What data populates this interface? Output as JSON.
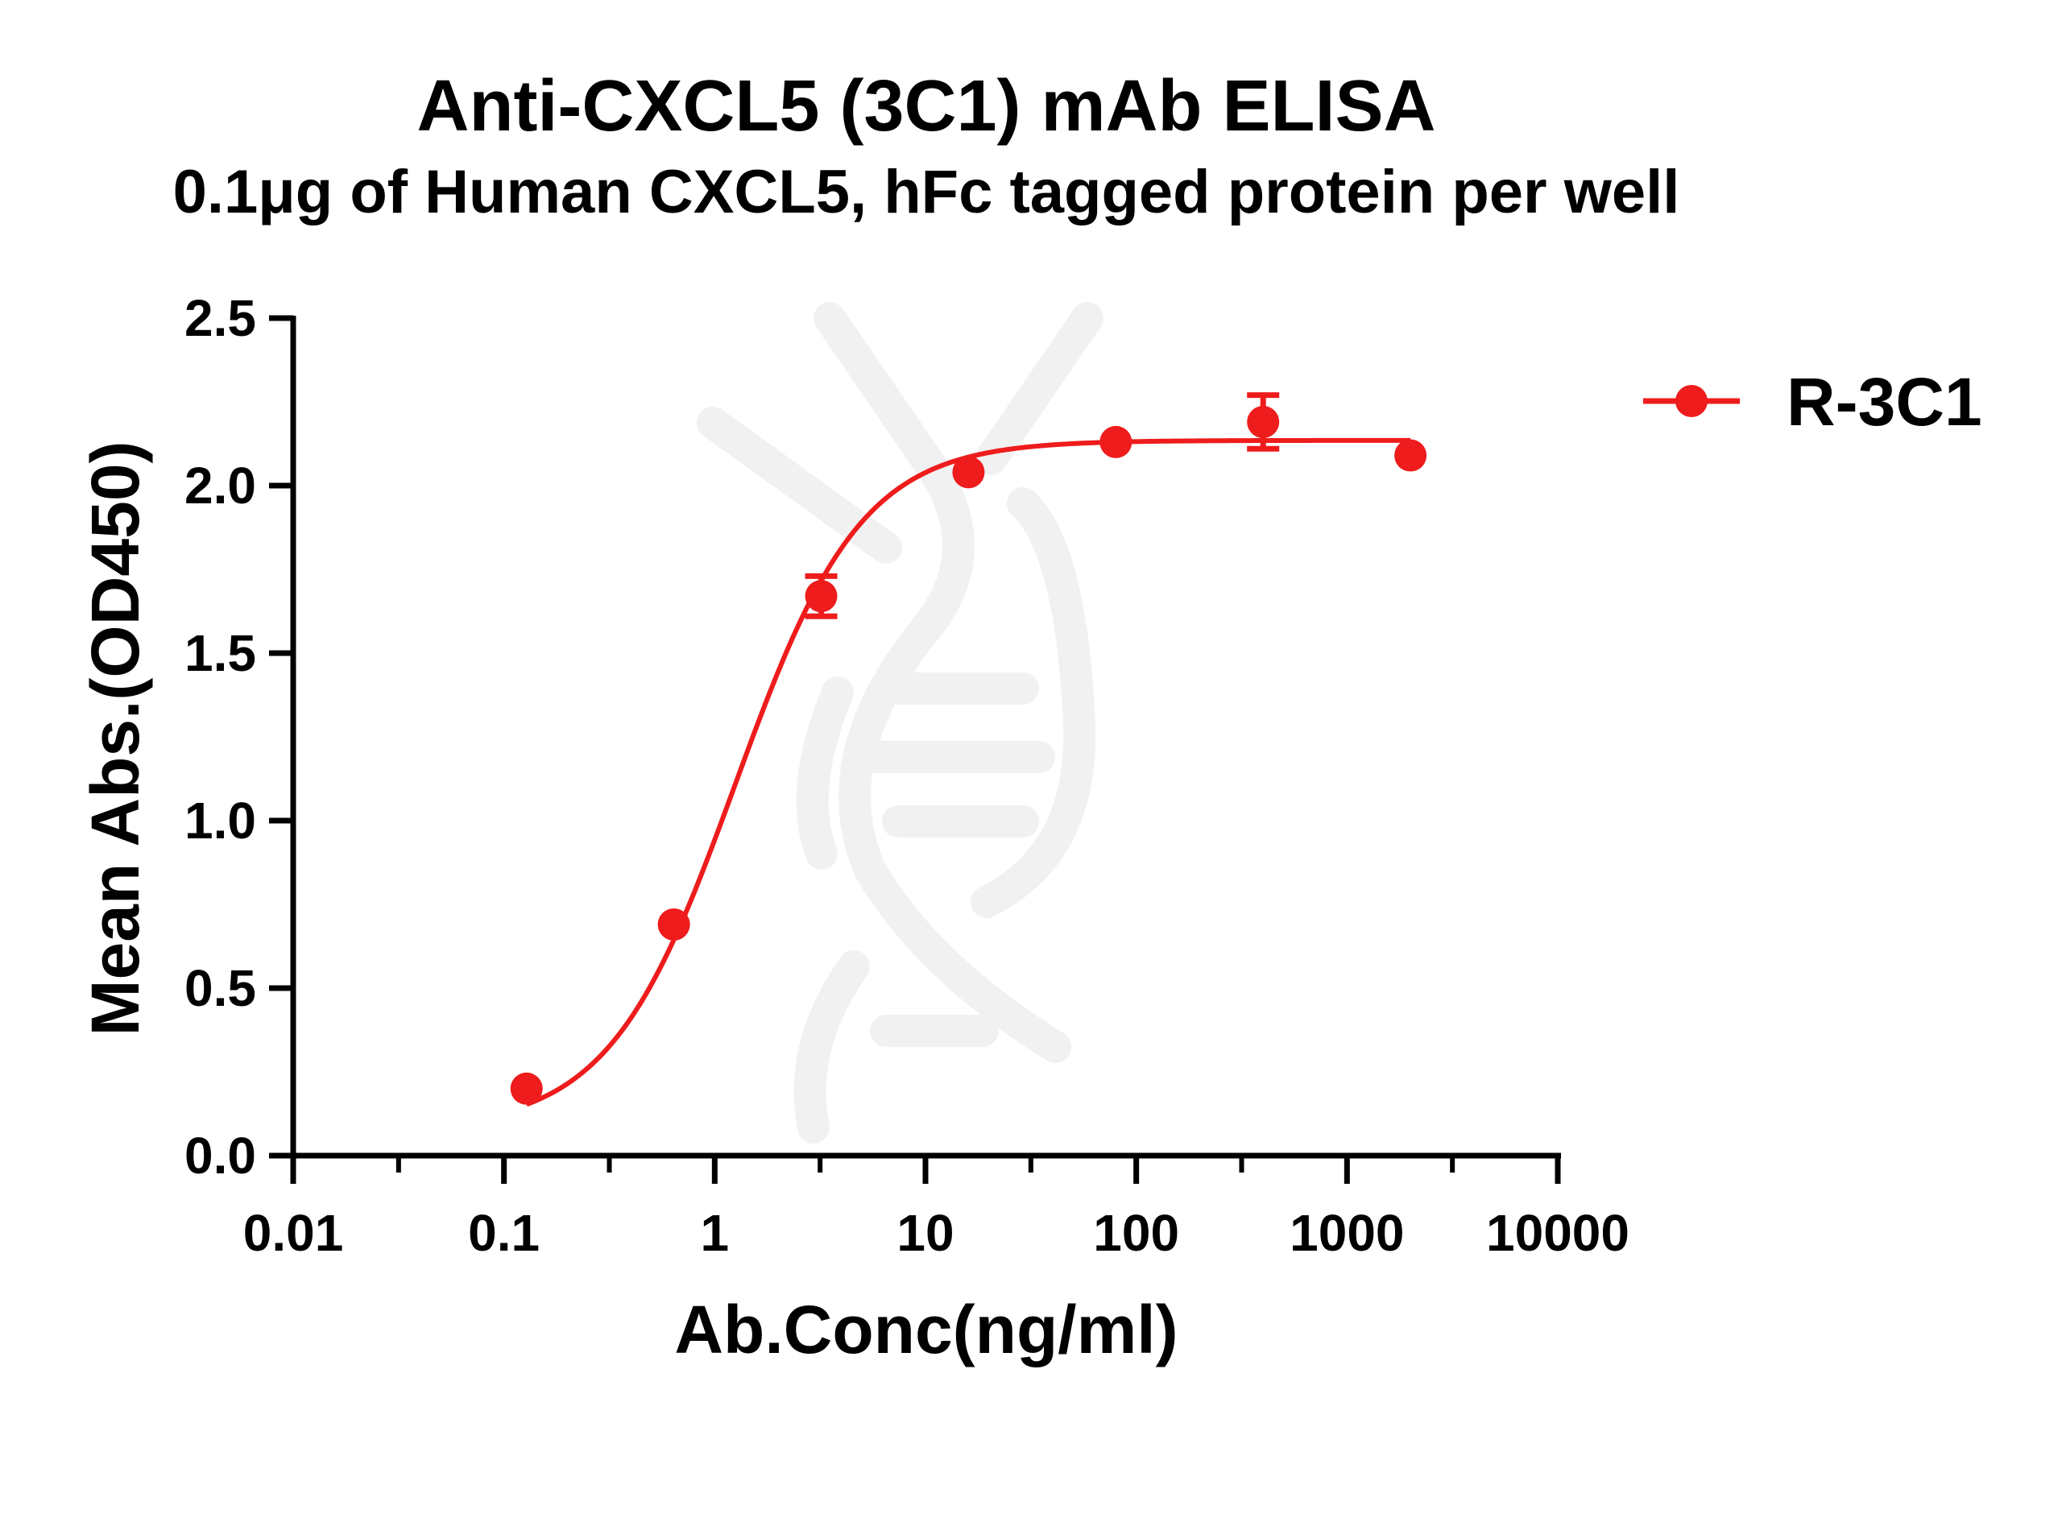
{
  "chart_data": {
    "type": "scatter",
    "title": "Anti-CXCL5 (3C1) mAb ELISA",
    "subtitle": "0.1μg of Human CXCL5, hFc tagged protein per well",
    "xlabel": "Ab.Conc(ng/ml)",
    "ylabel": "Mean Abs.(OD450)",
    "x_scale": "log",
    "xlim": [
      0.01,
      10000
    ],
    "ylim": [
      0.0,
      2.5
    ],
    "x_ticks": [
      0.01,
      0.1,
      1,
      10,
      100,
      1000,
      10000
    ],
    "x_tick_labels": [
      "0.01",
      "0.1",
      "1",
      "10",
      "100",
      "1000",
      "10000"
    ],
    "y_ticks": [
      0.0,
      0.5,
      1.0,
      1.5,
      2.0,
      2.5
    ],
    "y_tick_labels": [
      "0.0",
      "0.5",
      "1.0",
      "1.5",
      "2.0",
      "2.5"
    ],
    "grid": false,
    "legend_position": "top-right",
    "series": [
      {
        "name": "R-3C1",
        "color": "#ee1c1c",
        "marker": "circle",
        "fit": "sigmoidal-4pl",
        "x": [
          0.128,
          0.64,
          3.2,
          16,
          80,
          400,
          2000
        ],
        "y": [
          0.2,
          0.69,
          1.67,
          2.04,
          2.13,
          2.19,
          2.09
        ],
        "error": [
          0.0,
          0.0,
          0.06,
          0.0,
          0.0,
          0.08,
          0.0
        ]
      }
    ]
  },
  "watermark": {
    "icon": "dna-helix-watermark-icon",
    "color": "#f2f2f2"
  }
}
